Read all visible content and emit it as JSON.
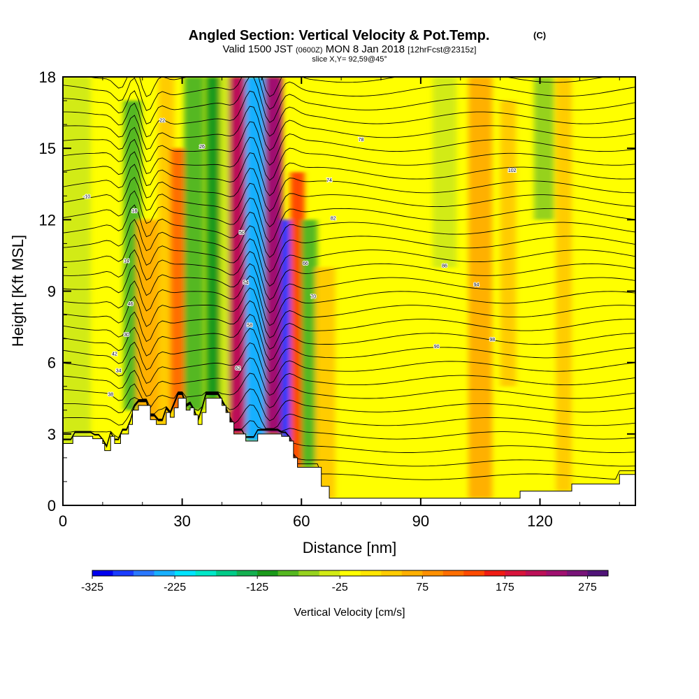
{
  "chart_data": {
    "type": "heatmap",
    "title": "Angled Section: Vertical Velocity & Pot.Temp.",
    "title_unit": "(C)",
    "subtitle_valid": "Valid 1500 JST",
    "subtitle_z": "(0600Z)",
    "subtitle_date": "MON 8 Jan 2018",
    "subtitle_fcst": "[12hrFcst@2315z]",
    "slice_label": "slice X,Y= 92,59@45°",
    "xlabel": "Distance [nm]",
    "ylabel": "Height [Kft MSL]",
    "xlim": [
      0,
      144
    ],
    "ylim": [
      0,
      18
    ],
    "x_ticks": [
      {
        "value": 0,
        "label": "0"
      },
      {
        "value": 30,
        "label": "30"
      },
      {
        "value": 60,
        "label": "60"
      },
      {
        "value": 90,
        "label": "90"
      },
      {
        "value": 120,
        "label": "120"
      }
    ],
    "y_ticks": [
      {
        "value": 0,
        "label": "0"
      },
      {
        "value": 3,
        "label": "3"
      },
      {
        "value": 6,
        "label": "6"
      },
      {
        "value": 9,
        "label": "9"
      },
      {
        "value": 12,
        "label": "12"
      },
      {
        "value": 15,
        "label": "15"
      },
      {
        "value": 18,
        "label": "18"
      }
    ],
    "colorbar": {
      "label": "Vertical Velocity [cm/s]",
      "min": -325,
      "max": 300,
      "step": 25,
      "tick_labels": [
        {
          "value": -325,
          "label": "-325"
        },
        {
          "value": -225,
          "label": "-225"
        },
        {
          "value": -125,
          "label": "-125"
        },
        {
          "value": -25,
          "label": "-25"
        },
        {
          "value": 75,
          "label": "75"
        },
        {
          "value": 175,
          "label": "175"
        },
        {
          "value": 275,
          "label": "275"
        }
      ],
      "colors": [
        "#0000ee",
        "#1a3cff",
        "#2a78ff",
        "#18b0ff",
        "#00e4ff",
        "#00e8c8",
        "#00cc88",
        "#14b050",
        "#1a9a1a",
        "#55b820",
        "#96d21e",
        "#d2eb14",
        "#ffff00",
        "#ffe600",
        "#ffcc00",
        "#ffb000",
        "#ff9000",
        "#ff6e00",
        "#ff4a00",
        "#f01c14",
        "#d8143c",
        "#bc1058",
        "#a01070",
        "#781478",
        "#501478"
      ]
    },
    "terrain_profile": [
      {
        "x": 0,
        "y": 2.6
      },
      {
        "x": 2.5,
        "y": 2.9
      },
      {
        "x": 7.5,
        "y": 2.8
      },
      {
        "x": 10,
        "y": 2.6
      },
      {
        "x": 10.5,
        "y": 2.3
      },
      {
        "x": 11.5,
        "y": 2.3
      },
      {
        "x": 12,
        "y": 2.9
      },
      {
        "x": 13,
        "y": 2.6
      },
      {
        "x": 14,
        "y": 2.6
      },
      {
        "x": 14.5,
        "y": 3.0
      },
      {
        "x": 15.5,
        "y": 3.0
      },
      {
        "x": 16.5,
        "y": 3.4
      },
      {
        "x": 17.5,
        "y": 4.0
      },
      {
        "x": 19,
        "y": 4.2
      },
      {
        "x": 21,
        "y": 4.2
      },
      {
        "x": 22,
        "y": 3.6
      },
      {
        "x": 23,
        "y": 3.6
      },
      {
        "x": 23.5,
        "y": 3.4
      },
      {
        "x": 25,
        "y": 3.4
      },
      {
        "x": 26,
        "y": 3.9
      },
      {
        "x": 27,
        "y": 3.7
      },
      {
        "x": 28,
        "y": 4.1
      },
      {
        "x": 29,
        "y": 4.5
      },
      {
        "x": 30,
        "y": 4.5
      },
      {
        "x": 31,
        "y": 4.0
      },
      {
        "x": 32,
        "y": 4.1
      },
      {
        "x": 33,
        "y": 3.8
      },
      {
        "x": 34,
        "y": 3.4
      },
      {
        "x": 35,
        "y": 3.9
      },
      {
        "x": 36,
        "y": 4.5
      },
      {
        "x": 39,
        "y": 4.5
      },
      {
        "x": 40,
        "y": 4.2
      },
      {
        "x": 41,
        "y": 3.9
      },
      {
        "x": 42,
        "y": 3.5
      },
      {
        "x": 43,
        "y": 3.0
      },
      {
        "x": 45,
        "y": 3.0
      },
      {
        "x": 46,
        "y": 2.7
      },
      {
        "x": 48,
        "y": 2.7
      },
      {
        "x": 49,
        "y": 3.0
      },
      {
        "x": 51,
        "y": 3.0
      },
      {
        "x": 53,
        "y": 3.0
      },
      {
        "x": 55,
        "y": 2.9
      },
      {
        "x": 57,
        "y": 2.7
      },
      {
        "x": 58,
        "y": 2.0
      },
      {
        "x": 59,
        "y": 1.6
      },
      {
        "x": 63,
        "y": 1.6
      },
      {
        "x": 65,
        "y": 0.8
      },
      {
        "x": 67,
        "y": 0.3
      },
      {
        "x": 114,
        "y": 0.3
      },
      {
        "x": 115,
        "y": 0.6
      },
      {
        "x": 125,
        "y": 0.6
      },
      {
        "x": 128,
        "y": 0.9
      },
      {
        "x": 138,
        "y": 0.9
      },
      {
        "x": 140,
        "y": 1.3
      },
      {
        "x": 144,
        "y": 1.3
      }
    ],
    "velocity_bands": [
      {
        "x_center": 3,
        "half_width": 4,
        "value": -50,
        "y_from": 0,
        "y_to": 18
      },
      {
        "x_center": 17.5,
        "half_width": 2.2,
        "value": -100,
        "y_from": 4,
        "y_to": 17
      },
      {
        "x_center": 21.5,
        "half_width": 3,
        "value": 60,
        "y_from": 3.5,
        "y_to": 12
      },
      {
        "x_center": 26,
        "half_width": 2,
        "value": 25,
        "y_from": 3,
        "y_to": 18
      },
      {
        "x_center": 29,
        "half_width": 2,
        "value": 110,
        "y_from": 4,
        "y_to": 15
      },
      {
        "x_center": 33,
        "half_width": 2.5,
        "value": -80,
        "y_from": 4,
        "y_to": 18
      },
      {
        "x_center": 38,
        "half_width": 2,
        "value": -120,
        "y_from": 4.5,
        "y_to": 18
      },
      {
        "x_center": 41,
        "half_width": 1.5,
        "value": -40,
        "y_from": 4,
        "y_to": 18
      },
      {
        "x_center": 44,
        "half_width": 2.2,
        "value": 200,
        "y_from": 3,
        "y_to": 18
      },
      {
        "x_center": 48.5,
        "half_width": 2.6,
        "value": -240,
        "y_from": 2.7,
        "y_to": 18
      },
      {
        "x_center": 53,
        "half_width": 2.2,
        "value": 230,
        "y_from": 3,
        "y_to": 18
      },
      {
        "x_center": 56.5,
        "half_width": 1.6,
        "value": -300,
        "y_from": 2.7,
        "y_to": 12
      },
      {
        "x_center": 59,
        "half_width": 1.8,
        "value": 140,
        "y_from": 1.6,
        "y_to": 14
      },
      {
        "x_center": 62,
        "half_width": 2,
        "value": -80,
        "y_from": 1.6,
        "y_to": 12
      },
      {
        "x_center": 66,
        "half_width": 2.5,
        "value": 40,
        "y_from": 0.3,
        "y_to": 10
      },
      {
        "x_center": 96,
        "half_width": 3,
        "value": -30,
        "y_from": 10,
        "y_to": 18
      },
      {
        "x_center": 105,
        "half_width": 3,
        "value": 60,
        "y_from": 0.3,
        "y_to": 18
      },
      {
        "x_center": 112,
        "half_width": 2,
        "value": 35,
        "y_from": 5,
        "y_to": 17
      },
      {
        "x_center": 121,
        "half_width": 2.5,
        "value": -55,
        "y_from": 12,
        "y_to": 18
      },
      {
        "x_center": 126,
        "half_width": 2,
        "value": 30,
        "y_from": 0.6,
        "y_to": 18
      },
      {
        "x_center": 135,
        "half_width": 2,
        "value": -20,
        "y_from": 13,
        "y_to": 18
      }
    ],
    "isentrope_labels": [
      "-10",
      "14",
      "18",
      "22",
      "26",
      "30",
      "34",
      "38",
      "42",
      "46",
      "50",
      "54",
      "58",
      "62",
      "66",
      "70",
      "74",
      "78",
      "82",
      "86",
      "90",
      "94",
      "98",
      "102"
    ]
  }
}
